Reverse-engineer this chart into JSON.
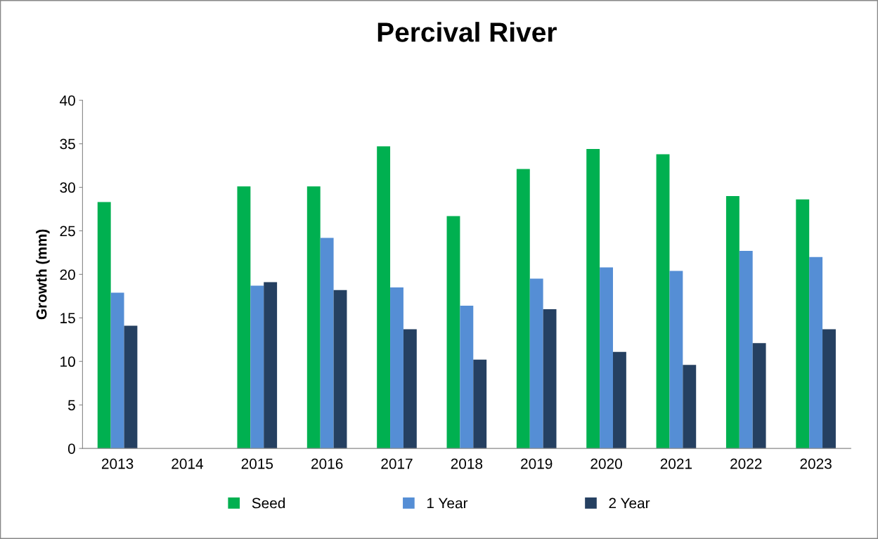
{
  "chart_data": {
    "type": "bar",
    "title": "Percival River",
    "ylabel": "Growth (mm)",
    "categories": [
      "2013",
      "2014",
      "2015",
      "2016",
      "2017",
      "2018",
      "2019",
      "2020",
      "2021",
      "2022",
      "2023"
    ],
    "series": [
      {
        "name": "Seed",
        "color": "#00b050",
        "values": [
          28.3,
          null,
          30.1,
          30.1,
          34.7,
          26.7,
          32.1,
          34.4,
          33.8,
          29.0,
          28.6
        ]
      },
      {
        "name": "1 Year",
        "color": "#558ed5",
        "values": [
          17.9,
          null,
          18.7,
          24.2,
          18.5,
          16.4,
          19.5,
          20.8,
          20.4,
          22.7,
          22.0
        ]
      },
      {
        "name": "2 Year",
        "color": "#254061",
        "values": [
          14.1,
          null,
          19.1,
          18.2,
          13.7,
          10.2,
          16.0,
          11.1,
          9.6,
          12.1,
          13.7
        ]
      }
    ],
    "ylim": [
      0,
      40
    ],
    "yticks": [
      0,
      5,
      10,
      15,
      20,
      25,
      30,
      35,
      40
    ],
    "grid": false,
    "legend": "bottom"
  }
}
